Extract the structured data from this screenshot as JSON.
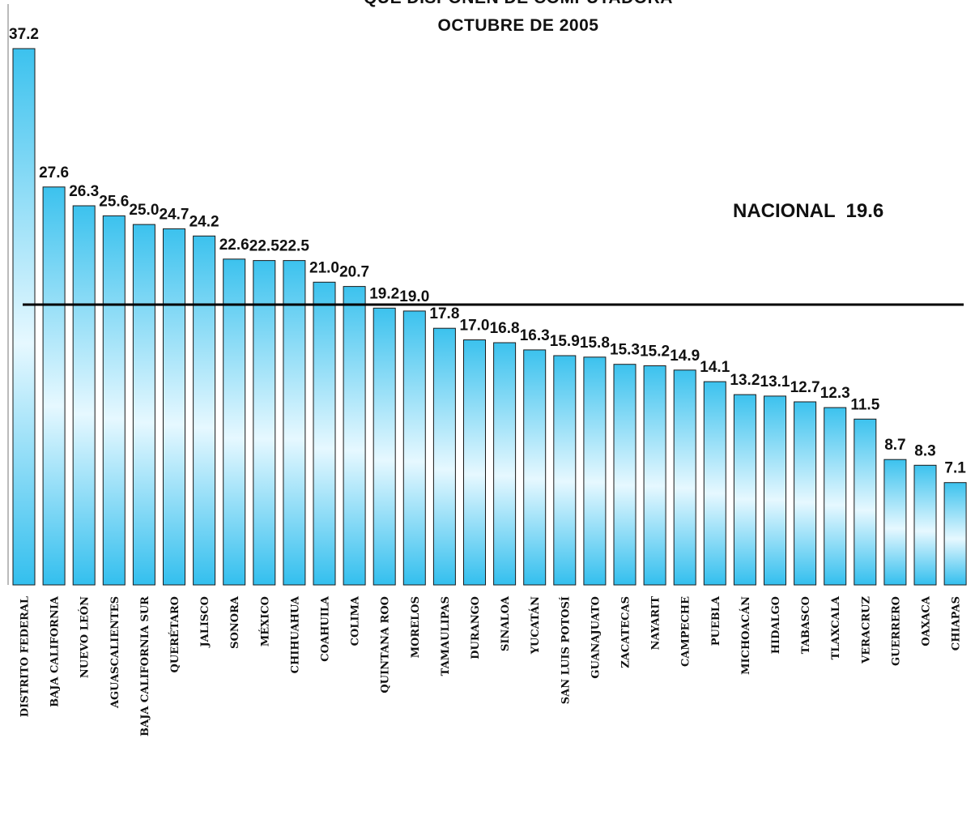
{
  "chart_data": {
    "type": "bar",
    "title_line1": "QUE DISPONEN DE COMPUTADORA",
    "title_line2": "OCTUBRE DE 2005",
    "categories": [
      "DISTRITO FEDERAL",
      "BAJA CALIFORNIA",
      "NUEVO LEÓN",
      "AGUASCALIENTES",
      "BAJA CALIFORNIA SUR",
      "QUERÉTARO",
      "JALISCO",
      "SONORA",
      "MÉXICO",
      "CHIHUAHUA",
      "COAHUILA",
      "COLIMA",
      "QUINTANA ROO",
      "MORELOS",
      "TAMAULIPAS",
      "DURANGO",
      "SINALOA",
      "YUCATÁN",
      "SAN LUIS POTOSÍ",
      "GUANAJUATO",
      "ZACATECAS",
      "NAYARIT",
      "CAMPECHE",
      "PUEBLA",
      "MICHOACÁN",
      "HIDALGO",
      "TABASCO",
      "TLAXCALA",
      "VERACRUZ",
      "GUERRERO",
      "OAXACA",
      "CHIAPAS"
    ],
    "values": [
      37.2,
      27.6,
      26.3,
      25.6,
      25.0,
      24.7,
      24.2,
      22.6,
      22.5,
      22.5,
      21.0,
      20.7,
      19.2,
      19.0,
      17.8,
      17.0,
      16.8,
      16.3,
      15.9,
      15.8,
      15.3,
      15.2,
      14.9,
      14.1,
      13.2,
      13.1,
      12.7,
      12.3,
      11.5,
      8.7,
      8.3,
      7.1
    ],
    "value_labels": [
      "37.2",
      "27.6",
      "26.3",
      "25.6",
      "25.0",
      "24.7",
      "24.2",
      "22.6",
      "22.5",
      "22.5",
      "21.0",
      "20.7",
      "19.2",
      "19.0",
      "17.8",
      "17.0",
      "16.8",
      "16.3",
      "15.9",
      "15.8",
      "15.3",
      "15.2",
      "14.9",
      "14.1",
      "13.2",
      "13.1",
      "12.7",
      "12.3",
      "11.5",
      "8.7",
      "8.3",
      "7.1"
    ],
    "reference_line": {
      "label": "NACIONAL  19.6",
      "value": 19.6
    },
    "ylim": [
      0,
      40
    ],
    "grid": false,
    "bar_color_top": "#3cc2ee",
    "bar_color_light": "#e6f8ff",
    "bar_color_bottom": "#33bfee"
  }
}
